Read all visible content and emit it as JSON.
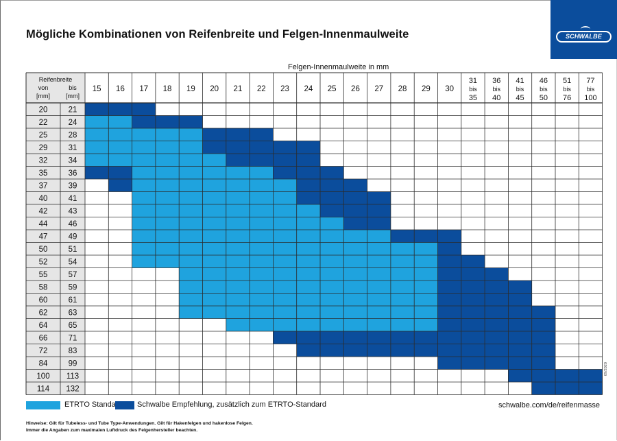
{
  "title": "Mögliche Kombinationen von Reifenbreite und Felgen-Innenmaulweite",
  "logo_text": "SCHWALBE",
  "axis_caption": "Felgen-Innenmaulweite in mm",
  "corner_header": {
    "line1": "Reifenbreite",
    "von": "von",
    "bis": "bis",
    "mm1": "[mm]",
    "mm2": "[mm]"
  },
  "columns": [
    "15",
    "16",
    "17",
    "18",
    "19",
    "20",
    "21",
    "22",
    "23",
    "24",
    "25",
    "26",
    "27",
    "28",
    "29",
    "30",
    "31\nbis\n35",
    "36\nbis\n40",
    "41\nbis\n45",
    "46\nbis\n50",
    "51\nbis\n76",
    "77\nbis\n100"
  ],
  "rows": [
    {
      "von": "20",
      "bis": "21"
    },
    {
      "von": "22",
      "bis": "24"
    },
    {
      "von": "25",
      "bis": "28"
    },
    {
      "von": "29",
      "bis": "31"
    },
    {
      "von": "32",
      "bis": "34"
    },
    {
      "von": "35",
      "bis": "36"
    },
    {
      "von": "37",
      "bis": "39"
    },
    {
      "von": "40",
      "bis": "41"
    },
    {
      "von": "42",
      "bis": "43"
    },
    {
      "von": "44",
      "bis": "46"
    },
    {
      "von": "47",
      "bis": "49"
    },
    {
      "von": "50",
      "bis": "51"
    },
    {
      "von": "52",
      "bis": "54"
    },
    {
      "von": "55",
      "bis": "57"
    },
    {
      "von": "58",
      "bis": "59"
    },
    {
      "von": "60",
      "bis": "61"
    },
    {
      "von": "62",
      "bis": "63"
    },
    {
      "von": "64",
      "bis": "65"
    },
    {
      "von": "66",
      "bis": "71"
    },
    {
      "von": "72",
      "bis": "83"
    },
    {
      "von": "84",
      "bis": "99"
    },
    {
      "von": "100",
      "bis": "113"
    },
    {
      "von": "114",
      "bis": "132"
    }
  ],
  "cell_matrix": [
    "DDD...................",
    "LLDDD.................",
    "LLLLLDDD..............",
    "LLLLLDDDDD............",
    "LLLLLLDDDD............",
    "DDLLLLLLDDD...........",
    ".DLLLLLLLDDD..........",
    "..LLLLLLLDDDD.........",
    "..LLLLLLLLDDD.........",
    "..LLLLLLLLLDD.........",
    "..LLLLLLLLLLLDDD......",
    "..LLLLLLLLLLLLLD......",
    "..LLLLLLLLLLLLLDD.....",
    "....LLLLLLLLLLLDDD....",
    "....LLLLLLLLLLLDDDD...",
    "....LLLLLLLLLLLDDDD...",
    "....LLLLLLLLLLLDDDDD..",
    "......LLLLLLLLLDDDDD..",
    "........DDDDDDDDDDDD..",
    ".........DDDDDDDDDDD..",
    "...............DDDDD..",
    "..................DDDD",
    "...................DDD"
  ],
  "legend": {
    "etrto": "ETRTO Standard",
    "schwalbe": "Schwalbe Empfehlung, zusätzlich zum ETRTO-Standard"
  },
  "url": "schwalbe.com/de/reifenmasse",
  "footnote1": "Hinweise: Gilt für Tubeless- und Tube Type-Anwendungen. Gilt für Hakenfelgen und hakenlose Felgen.",
  "footnote2": "Immer die Angaben zum maximalen Luftdruck des Felgenhersteller beachten.",
  "code": "09/2020",
  "colors": {
    "etrto": "#1fa3de",
    "schwalbe": "#0b4d9c",
    "row_label_bg": "#e6e6e6",
    "grid": "#2b2b2b"
  }
}
